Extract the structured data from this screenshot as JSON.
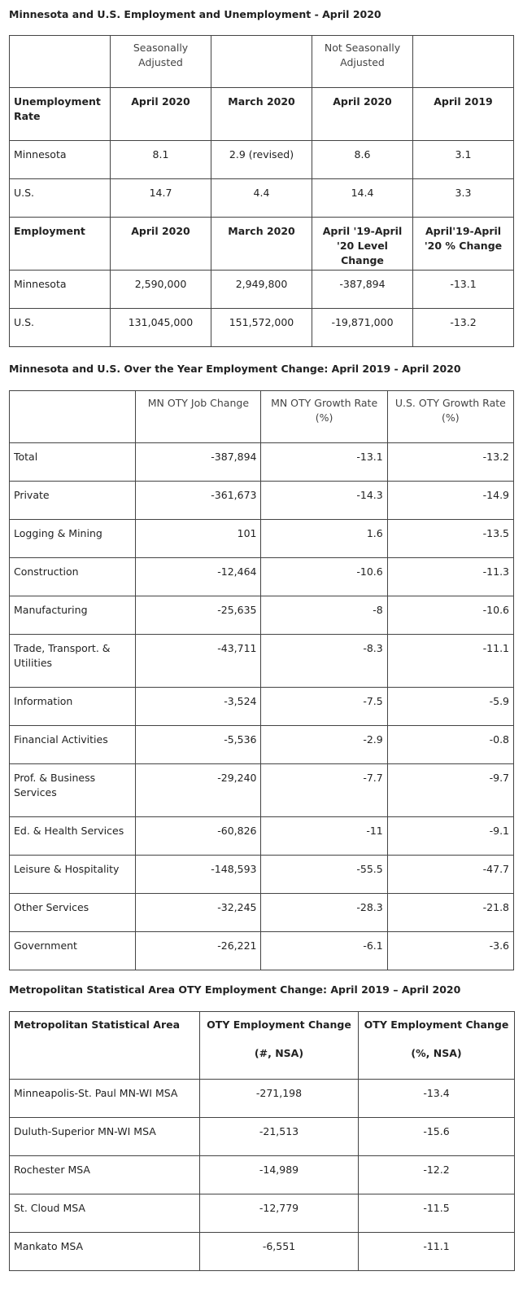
{
  "section1": {
    "title": "Minnesota and U.S. Employment and Unemployment - April 2020",
    "group_sa": "Seasonally Adjusted",
    "group_nsa": "Not Seasonally Adjusted",
    "unemp_header": [
      "Unemployment Rate",
      "April 2020",
      "March 2020",
      "April 2020",
      "April 2019"
    ],
    "unemp_rows": [
      [
        "Minnesota",
        "8.1",
        "2.9 (revised)",
        "8.6",
        "3.1"
      ],
      [
        "U.S.",
        "14.7",
        "4.4",
        "14.4",
        "3.3"
      ]
    ],
    "emp_header": [
      "Employment",
      "April 2020",
      "March 2020",
      "April '19-April '20 Level Change",
      "April'19-April '20 % Change"
    ],
    "emp_rows": [
      [
        "Minnesota",
        "2,590,000",
        "2,949,800",
        "-387,894",
        "-13.1"
      ],
      [
        "U.S.",
        "131,045,000",
        "151,572,000",
        "-19,871,000",
        "-13.2"
      ]
    ]
  },
  "section2": {
    "title": "Minnesota and U.S. Over the Year Employment Change: April 2019 - April 2020",
    "header": [
      "",
      "MN OTY Job Change",
      "MN OTY Growth Rate (%)",
      "U.S. OTY Growth Rate (%)"
    ],
    "rows": [
      [
        "Total",
        "-387,894",
        "-13.1",
        "-13.2"
      ],
      [
        "Private",
        "-361,673",
        "-14.3",
        "-14.9"
      ],
      [
        "Logging & Mining",
        "101",
        "1.6",
        "-13.5"
      ],
      [
        "Construction",
        "-12,464",
        "-10.6",
        "-11.3"
      ],
      [
        "Manufacturing",
        "-25,635",
        "-8",
        "-10.6"
      ],
      [
        "Trade, Transport. & Utilities",
        "-43,711",
        "-8.3",
        "-11.1"
      ],
      [
        "Information",
        "-3,524",
        "-7.5",
        "-5.9"
      ],
      [
        "Financial Activities",
        "-5,536",
        "-2.9",
        "-0.8"
      ],
      [
        "Prof. & Business Services",
        "-29,240",
        "-7.7",
        "-9.7"
      ],
      [
        "Ed. & Health Services",
        "-60,826",
        "-11",
        "-9.1"
      ],
      [
        "Leisure & Hospitality",
        "-148,593",
        "-55.5",
        "-47.7"
      ],
      [
        "Other Services",
        "-32,245",
        "-28.3",
        "-21.8"
      ],
      [
        "Government",
        "-26,221",
        "-6.1",
        "-3.6"
      ]
    ]
  },
  "section3": {
    "title": "Metropolitan Statistical Area OTY Employment Change: April 2019 – April 2020",
    "header": [
      "Metropolitan Statistical Area",
      "OTY Employment Change",
      "(#, NSA)",
      "OTY Employment Change",
      "(%, NSA)"
    ],
    "rows": [
      [
        "Minneapolis-St. Paul MN-WI MSA",
        "-271,198",
        "-13.4"
      ],
      [
        "Duluth-Superior MN-WI MSA",
        "-21,513",
        "-15.6"
      ],
      [
        "Rochester MSA",
        "-14,989",
        "-12.2"
      ],
      [
        "St. Cloud MSA",
        "-12,779",
        "-11.5"
      ],
      [
        "Mankato MSA",
        "-6,551",
        "-11.1"
      ]
    ]
  }
}
